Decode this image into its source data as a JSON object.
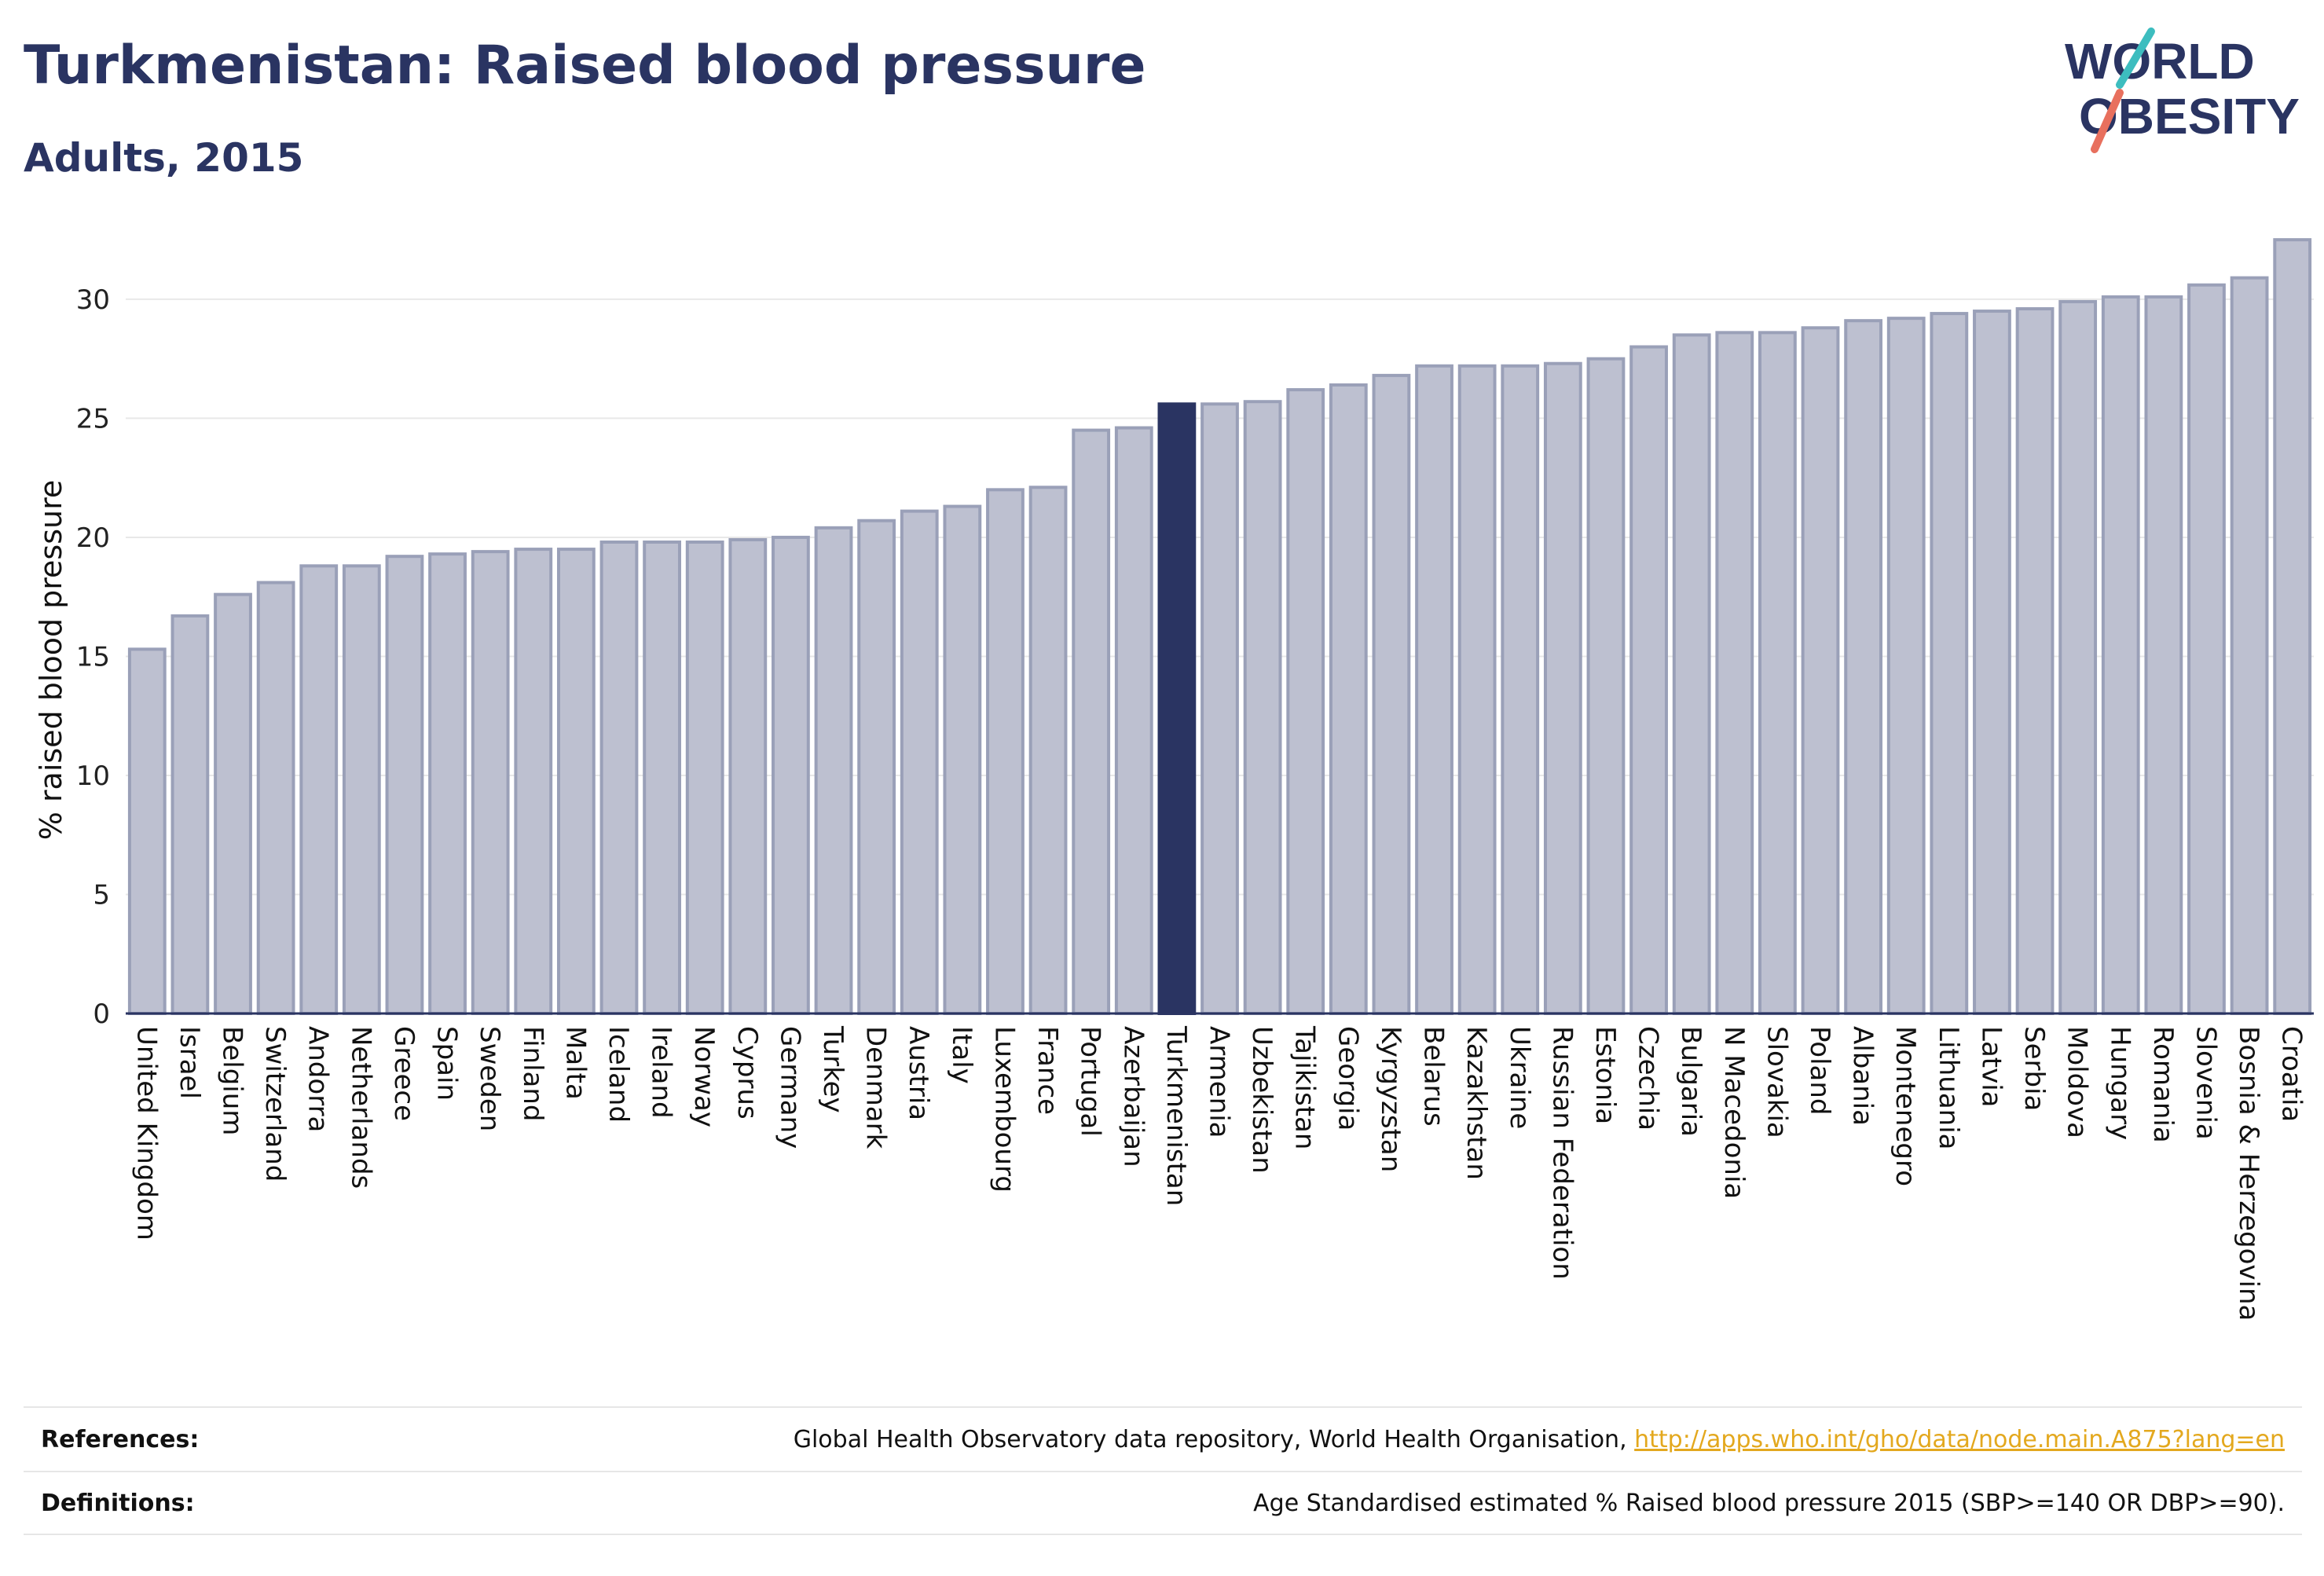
{
  "header": {
    "title": "Turkmenistan: Raised blood pressure",
    "subtitle": "Adults, 2015"
  },
  "logo": {
    "line1": "WORLD",
    "line2": "OBESITY",
    "accent_colors": [
      "#3dbdbf",
      "#e8705e"
    ]
  },
  "footer": {
    "references_label": "References:",
    "references_text": "Global Health Observatory data repository, World Health Organisation, ",
    "references_link": "http://apps.who.int/gho/data/node.main.A875?lang=en",
    "definitions_label": "Definitions:",
    "definitions_text": "Age Standardised estimated % Raised blood pressure 2015 (SBP>=140 OR DBP>=90)."
  },
  "colors": {
    "bar_fill": "#bdc0d0",
    "bar_stroke": "#9aa0b8",
    "highlight": "#2a3462",
    "grid": "#e8e8e8"
  },
  "chart_data": {
    "type": "bar",
    "ylabel": "% raised blood pressure",
    "xlabel": "",
    "ylim": [
      0,
      33
    ],
    "yticks": [
      0,
      5,
      10,
      15,
      20,
      25,
      30
    ],
    "grid": true,
    "highlight": "Turkmenistan",
    "categories": [
      "United Kingdom",
      "Israel",
      "Belgium",
      "Switzerland",
      "Andorra",
      "Netherlands",
      "Greece",
      "Spain",
      "Sweden",
      "Finland",
      "Malta",
      "Iceland",
      "Ireland",
      "Norway",
      "Cyprus",
      "Germany",
      "Turkey",
      "Denmark",
      "Austria",
      "Italy",
      "Luxembourg",
      "France",
      "Portugal",
      "Azerbaijan",
      "Turkmenistan",
      "Armenia",
      "Uzbekistan",
      "Tajikistan",
      "Georgia",
      "Kyrgyzstan",
      "Belarus",
      "Kazakhstan",
      "Ukraine",
      "Russian Federation",
      "Estonia",
      "Czechia",
      "Bulgaria",
      "N Macedonia",
      "Slovakia",
      "Poland",
      "Albania",
      "Montenegro",
      "Lithuania",
      "Latvia",
      "Serbia",
      "Moldova",
      "Hungary",
      "Romania",
      "Slovenia",
      "Bosnia & Herzegovina",
      "Croatia"
    ],
    "values": [
      15.3,
      16.7,
      17.6,
      18.1,
      18.8,
      18.8,
      19.2,
      19.3,
      19.4,
      19.5,
      19.5,
      19.8,
      19.8,
      19.8,
      19.9,
      20.0,
      20.4,
      20.7,
      21.1,
      21.3,
      22.0,
      22.1,
      24.5,
      24.6,
      25.6,
      25.6,
      25.7,
      26.2,
      26.4,
      26.8,
      27.2,
      27.2,
      27.2,
      27.3,
      27.5,
      28.0,
      28.5,
      28.6,
      28.6,
      28.8,
      29.1,
      29.2,
      29.4,
      29.5,
      29.6,
      29.9,
      30.1,
      30.1,
      30.6,
      30.9,
      32.5
    ]
  }
}
